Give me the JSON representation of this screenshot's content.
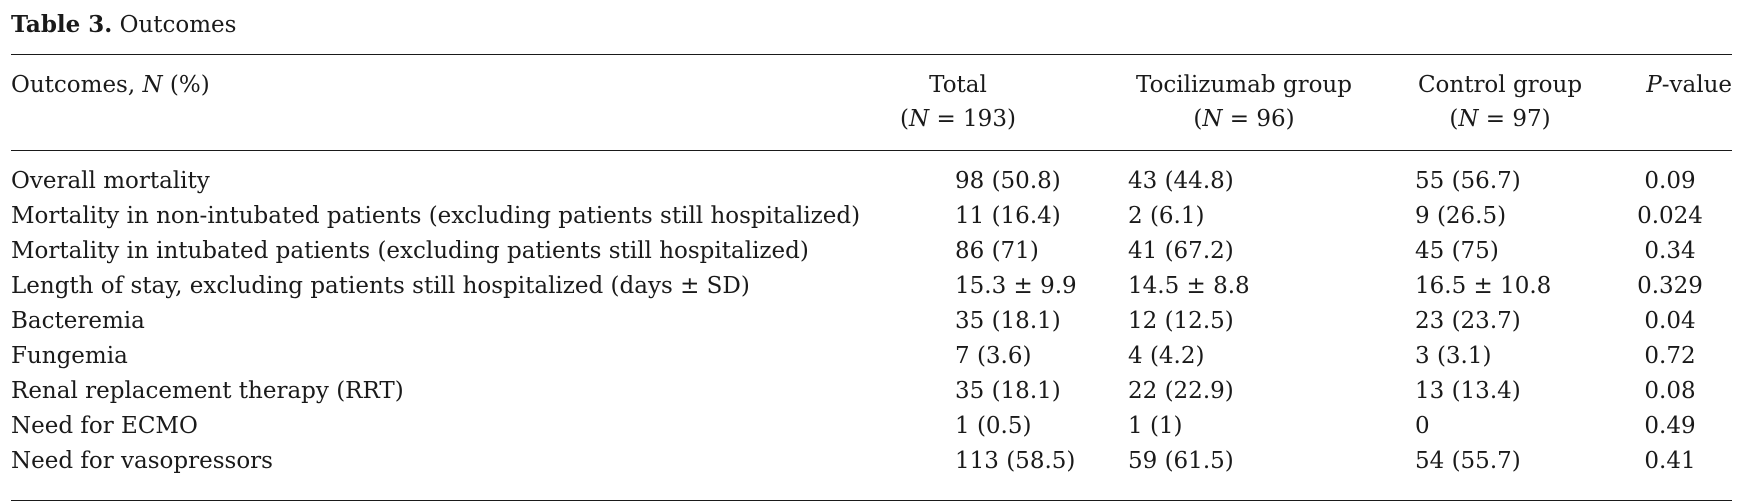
{
  "caption": {
    "label": "Table 3.",
    "title": "Outcomes"
  },
  "columns": {
    "outcome": "Outcomes, N (%)",
    "total": {
      "name": "Total",
      "n": "(N = 193)"
    },
    "tocilizumab": {
      "name": "Tocilizumab group",
      "n": "(N = 96)"
    },
    "control": {
      "name": "Control group",
      "n": "(N = 97)"
    },
    "pvalue": "P-value"
  },
  "rows": [
    {
      "outcome": "Overall mortality",
      "total": "98 (50.8)",
      "tocilizumab": "43 (44.8)",
      "control": "55 (56.7)",
      "p": "0.09"
    },
    {
      "outcome": "Mortality in non-intubated patients (excluding patients still hospitalized)",
      "total": "11 (16.4)",
      "tocilizumab": "2 (6.1)",
      "control": "9 (26.5)",
      "p": "0.024"
    },
    {
      "outcome": "Mortality in intubated patients (excluding patients still hospitalized)",
      "total": "86 (71)",
      "tocilizumab": "41 (67.2)",
      "control": "45 (75)",
      "p": "0.34"
    },
    {
      "outcome": "Length of stay, excluding patients still hospitalized (days ± SD)",
      "total": "15.3 ± 9.9",
      "tocilizumab": "14.5 ± 8.8",
      "control": "16.5 ± 10.8",
      "p": "0.329"
    },
    {
      "outcome": "Bacteremia",
      "total": "35 (18.1)",
      "tocilizumab": "12 (12.5)",
      "control": "23 (23.7)",
      "p": "0.04"
    },
    {
      "outcome": "Fungemia",
      "total": "7 (3.6)",
      "tocilizumab": "4 (4.2)",
      "control": "3 (3.1)",
      "p": "0.72"
    },
    {
      "outcome": "Renal replacement therapy (RRT)",
      "total": "35 (18.1)",
      "tocilizumab": "22 (22.9)",
      "control": "13 (13.4)",
      "p": "0.08"
    },
    {
      "outcome": "Need for ECMO",
      "total": "1 (0.5)",
      "tocilizumab": "1 (1)",
      "control": "0",
      "p": "0.49"
    },
    {
      "outcome": "Need for vasopressors",
      "total": "113 (58.5)",
      "tocilizumab": "59 (61.5)",
      "control": "54 (55.7)",
      "p": "0.41"
    }
  ]
}
